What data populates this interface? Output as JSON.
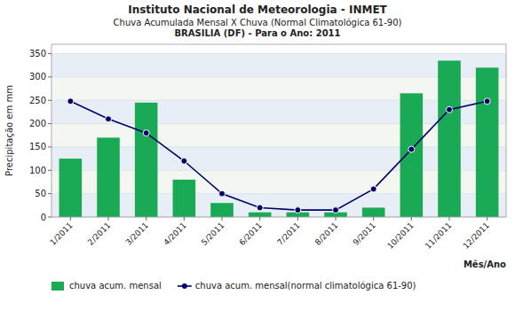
{
  "chart_data": {
    "type": "bar",
    "title": "Instituto Nacional de Meteorologia - INMET",
    "subtitle": [
      "Chuva Acumulada Mensal X Chuva (Normal Climatológica 61-90)",
      "BRASILIA (DF) - Para o Ano: 2011"
    ],
    "categories": [
      "1/2011",
      "2/2011",
      "3/2011",
      "4/2011",
      "5/2011",
      "6/2011",
      "7/2011",
      "8/2011",
      "9/2011",
      "10/2011",
      "11/2011",
      "12/2011"
    ],
    "series": [
      {
        "name": "chuva acum. mensal",
        "type": "bar",
        "color": "#1aaa55",
        "values": [
          125,
          170,
          245,
          80,
          30,
          10,
          10,
          10,
          20,
          265,
          335,
          320
        ]
      },
      {
        "name": "chuva acum. mensal(normal climatológica 61-90)",
        "type": "line",
        "color": "#000066",
        "marker": "circle",
        "values": [
          248,
          210,
          180,
          120,
          50,
          20,
          15,
          15,
          60,
          145,
          230,
          248
        ]
      }
    ],
    "x_label": "Mês/Ano",
    "y_label": "Precipitação em mm",
    "ylim": [
      0,
      370
    ],
    "yticks": [
      0,
      50,
      100,
      150,
      200,
      250,
      300,
      350
    ],
    "grid": true,
    "legend": "bottom"
  }
}
